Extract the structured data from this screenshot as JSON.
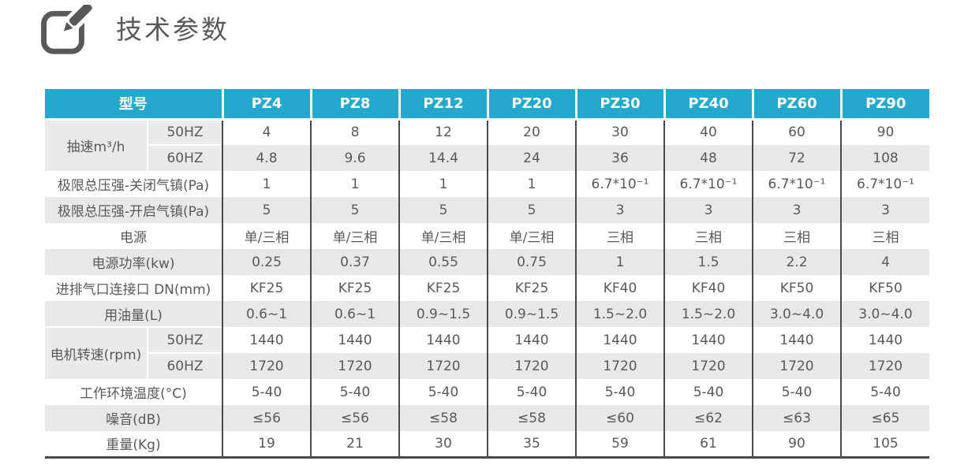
{
  "page": {
    "title": "技术参数"
  },
  "colors": {
    "accent": "#24a8ce",
    "dark_border": "#4a4a4b",
    "stripe_gray": "#e7e8e8",
    "group_label_gray": "#eaeaea",
    "text": "#58595b"
  },
  "icons": {
    "edit_icon": "pencil-square"
  },
  "table": {
    "header": {
      "label": "型号",
      "models": [
        "PZ4",
        "PZ8",
        "PZ12",
        "PZ20",
        "PZ30",
        "PZ40",
        "PZ60",
        "PZ90"
      ]
    },
    "rows": [
      {
        "type": "group-first",
        "group": "抽速m³/h",
        "sub": "50HZ",
        "values": [
          "4",
          "8",
          "12",
          "20",
          "30",
          "40",
          "60",
          "90"
        ]
      },
      {
        "type": "group-last",
        "sub": "60HZ",
        "values": [
          "4.8",
          "9.6",
          "14.4",
          "24",
          "36",
          "48",
          "72",
          "108"
        ]
      },
      {
        "type": "single",
        "label": "极限总压强-关闭气镇(Pa)",
        "values": [
          "1",
          "1",
          "1",
          "1",
          "6.7*10⁻¹",
          "6.7*10⁻¹",
          "6.7*10⁻¹",
          "6.7*10⁻¹"
        ]
      },
      {
        "type": "single",
        "label": "极限总压强-开启气镇(Pa)",
        "values": [
          "5",
          "5",
          "5",
          "5",
          "3",
          "3",
          "3",
          "3"
        ]
      },
      {
        "type": "single",
        "label": "电源",
        "values": [
          "单/三相",
          "单/三相",
          "单/三相",
          "单/三相",
          "三相",
          "三相",
          "三相",
          "三相"
        ]
      },
      {
        "type": "single",
        "label": "电源功率(kw)",
        "values": [
          "0.25",
          "0.37",
          "0.55",
          "0.75",
          "1",
          "1.5",
          "2.2",
          "4"
        ]
      },
      {
        "type": "single",
        "label": "进排气口连接口 DN(mm)",
        "values": [
          "KF25",
          "KF25",
          "KF25",
          "KF25",
          "KF40",
          "KF40",
          "KF50",
          "KF50"
        ]
      },
      {
        "type": "single",
        "label": "用油量(L)",
        "values": [
          "0.6~1",
          "0.6~1",
          "0.9~1.5",
          "0.9~1.5",
          "1.5~2.0",
          "1.5~2.0",
          "3.0~4.0",
          "3.0~4.0"
        ]
      },
      {
        "type": "group-first",
        "group": "电机转速(rpm)",
        "sub": "50HZ",
        "values": [
          "1440",
          "1440",
          "1440",
          "1440",
          "1440",
          "1440",
          "1440",
          "1440"
        ]
      },
      {
        "type": "group-last",
        "sub": "60HZ",
        "values": [
          "1720",
          "1720",
          "1720",
          "1720",
          "1720",
          "1720",
          "1720",
          "1720"
        ]
      },
      {
        "type": "single",
        "label": "工作环境温度(°C)",
        "values": [
          "5-40",
          "5-40",
          "5-40",
          "5-40",
          "5-40",
          "5-40",
          "5-40",
          "5-40"
        ]
      },
      {
        "type": "single",
        "label": "噪音(dB)",
        "values": [
          "≤56",
          "≤56",
          "≤58",
          "≤58",
          "≤60",
          "≤62",
          "≤63",
          "≤65"
        ]
      },
      {
        "type": "single",
        "label": "重量(Kg)",
        "values": [
          "19",
          "21",
          "30",
          "35",
          "59",
          "61",
          "90",
          "105"
        ]
      }
    ]
  }
}
